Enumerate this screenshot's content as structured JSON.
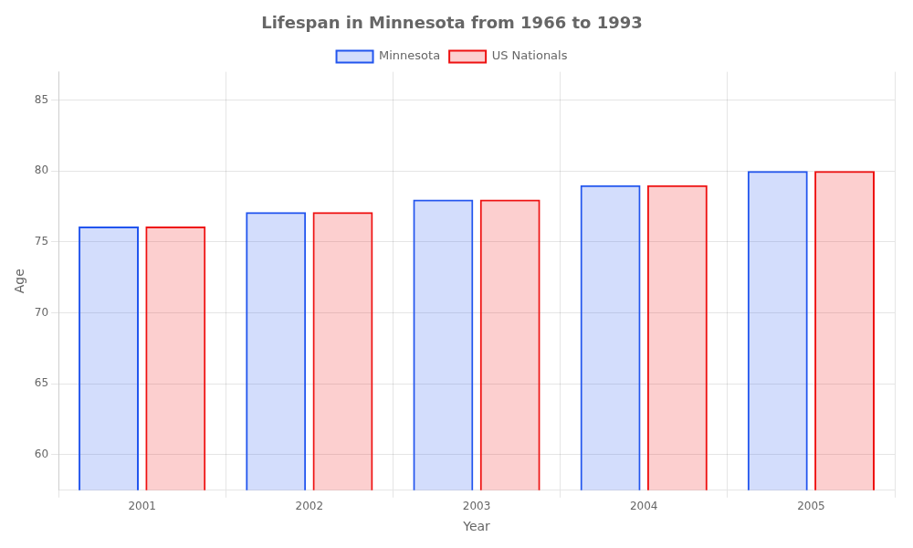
{
  "chart_data": {
    "type": "bar",
    "title": "Lifespan in Minnesota from 1966 to 1993",
    "x_label": "Year",
    "y_label": "Age",
    "categories": [
      "2001",
      "2002",
      "2003",
      "2004",
      "2005"
    ],
    "series": [
      {
        "name": "Minnesota",
        "color": "#2255ee",
        "values": [
          76.1,
          77.1,
          78.0,
          79.0,
          80.0
        ]
      },
      {
        "name": "US Nationals",
        "color": "#ee1111",
        "values": [
          76.1,
          77.1,
          78.0,
          79.0,
          80.0
        ]
      }
    ],
    "ylim": [
      57.5,
      87
    ],
    "yticks": [
      60,
      65,
      70,
      75,
      80,
      85
    ],
    "grid": true,
    "legend": "top"
  }
}
